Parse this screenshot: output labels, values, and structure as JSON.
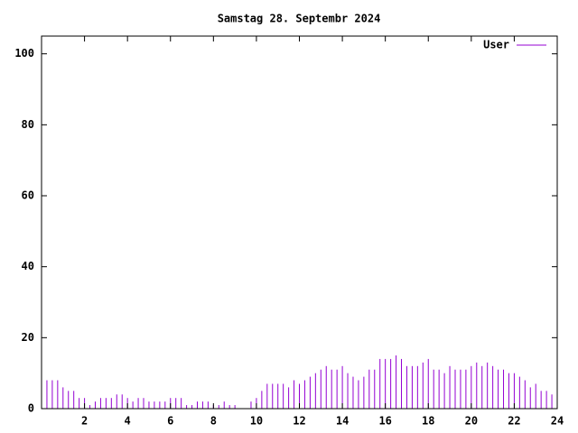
{
  "chart_data": {
    "type": "impulses",
    "title": "Samstag 28. Septembr 2024",
    "x": [
      0,
      0.25,
      0.5,
      0.75,
      1,
      1.25,
      1.5,
      1.75,
      2,
      2.25,
      2.5,
      2.75,
      3,
      3.25,
      3.5,
      3.75,
      4,
      4.25,
      4.5,
      4.75,
      5,
      5.25,
      5.5,
      5.75,
      6,
      6.25,
      6.5,
      6.75,
      7,
      7.25,
      7.5,
      7.75,
      8,
      8.25,
      8.5,
      8.75,
      9,
      9.25,
      9.5,
      9.75,
      10,
      10.25,
      10.5,
      10.75,
      11,
      11.25,
      11.5,
      11.75,
      12,
      12.25,
      12.5,
      12.75,
      13,
      13.25,
      13.5,
      13.75,
      14,
      14.25,
      14.5,
      14.75,
      15,
      15.25,
      15.5,
      15.75,
      16,
      16.25,
      16.5,
      16.75,
      17,
      17.25,
      17.5,
      17.75,
      18,
      18.25,
      18.5,
      18.75,
      19,
      19.25,
      19.5,
      19.75,
      20,
      20.25,
      20.5,
      20.75,
      21,
      21.25,
      21.5,
      21.75,
      22,
      22.25,
      22.5,
      22.75,
      23,
      23.25,
      23.5,
      23.75
    ],
    "series": [
      {
        "name": "User",
        "color": "#9400d3",
        "values": [
          9,
          8,
          8,
          8,
          6,
          5,
          5,
          3,
          3,
          1,
          2,
          3,
          3,
          3,
          4,
          4,
          3,
          2,
          3,
          3,
          2,
          2,
          2,
          2,
          3,
          3,
          3,
          1,
          1,
          2,
          2,
          2,
          1,
          1,
          2,
          1,
          1,
          0,
          0,
          2,
          3,
          5,
          7,
          7,
          7,
          7,
          6,
          8,
          7,
          8,
          9,
          10,
          11,
          12,
          11,
          11,
          12,
          10,
          9,
          8,
          9,
          11,
          11,
          14,
          14,
          14,
          15,
          14,
          12,
          12,
          12,
          13,
          14,
          11,
          11,
          10,
          12,
          11,
          11,
          11,
          12,
          13,
          12,
          13,
          12,
          11,
          11,
          10,
          10,
          9,
          8,
          6,
          7,
          5,
          5,
          4
        ]
      }
    ],
    "xlim": [
      0,
      24
    ],
    "xticks": [
      2,
      4,
      6,
      8,
      10,
      12,
      14,
      16,
      18,
      20,
      22,
      24
    ],
    "ylim": [
      0,
      105
    ],
    "yticks": [
      0,
      20,
      40,
      60,
      80,
      100
    ]
  }
}
